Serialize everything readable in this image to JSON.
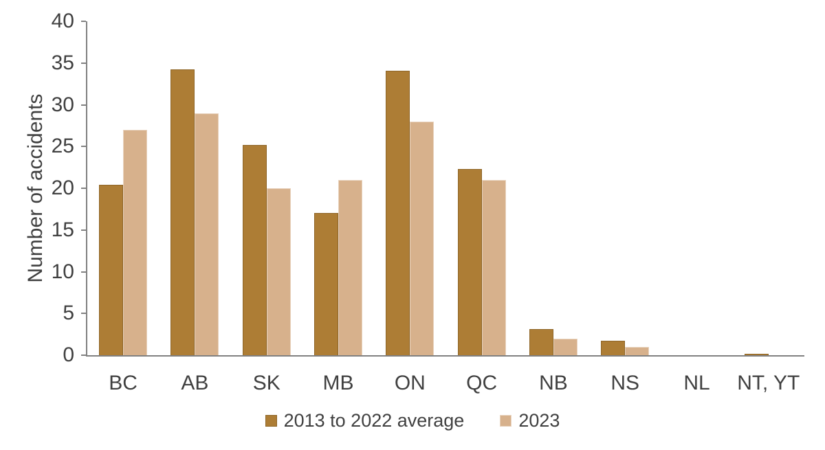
{
  "chart_data": {
    "type": "bar",
    "categories": [
      "BC",
      "AB",
      "SK",
      "MB",
      "ON",
      "QC",
      "NB",
      "NS",
      "NL",
      "NT, YT"
    ],
    "series": [
      {
        "name": "2013 to 2022 average",
        "color": "#AD7D35",
        "border_color": "#8E6527",
        "values": [
          20.4,
          34.2,
          25.2,
          17,
          34.1,
          22.3,
          3.1,
          1.7,
          0,
          0.2
        ]
      },
      {
        "name": "2023",
        "color": "#D7B18C",
        "border_color": "#E8D3BE",
        "values": [
          27,
          29,
          20,
          21,
          28,
          21,
          2,
          1,
          0,
          0
        ]
      }
    ],
    "title": "",
    "xlabel": "",
    "ylabel": "Number of accidents",
    "ylim": [
      0,
      40
    ],
    "ytick_step": 5,
    "grid": false,
    "legend_position": "bottom"
  },
  "colors": {
    "axis": "#808080",
    "text": "#404040",
    "background": "#ffffff"
  }
}
